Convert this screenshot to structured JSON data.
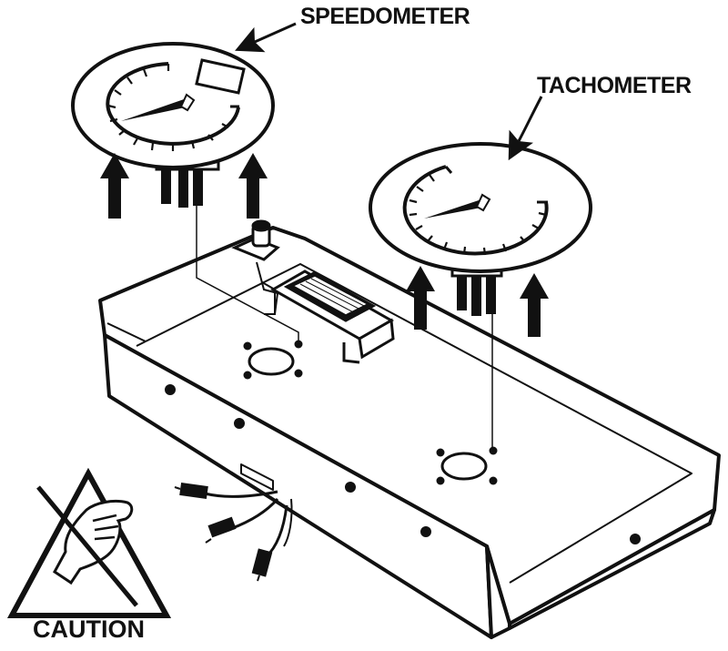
{
  "labels": {
    "speedometer": "SPEEDOMETER",
    "tachometer": "TACHOMETER",
    "caution": "CAUTION"
  },
  "colors": {
    "ink": "#111111",
    "paper": "#ffffff"
  },
  "icons": {
    "caution_symbol": "esd-hand-caution-icon"
  }
}
